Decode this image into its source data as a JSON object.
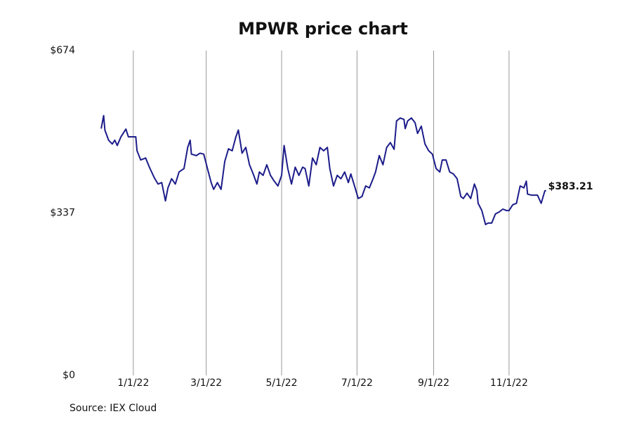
{
  "chart_data": {
    "type": "line",
    "title": "MPWR price chart",
    "source": "Source: IEX Cloud",
    "x": [
      "2021-12-06",
      "2021-12-08",
      "2021-12-09",
      "2021-12-12",
      "2021-12-15",
      "2021-12-17",
      "2021-12-19",
      "2021-12-22",
      "2021-12-26",
      "2021-12-28",
      "2022-01-03",
      "2022-01-04",
      "2022-01-07",
      "2022-01-11",
      "2022-01-14",
      "2022-01-18",
      "2022-01-21",
      "2022-01-24",
      "2022-01-27",
      "2022-01-29",
      "2022-02-01",
      "2022-02-04",
      "2022-02-07",
      "2022-02-11",
      "2022-02-14",
      "2022-02-16",
      "2022-02-17",
      "2022-02-21",
      "2022-02-24",
      "2022-02-27",
      "2022-03-02",
      "2022-03-05",
      "2022-03-07",
      "2022-03-10",
      "2022-03-13",
      "2022-03-16",
      "2022-03-19",
      "2022-03-22",
      "2022-03-25",
      "2022-03-27",
      "2022-03-30",
      "2022-04-02",
      "2022-04-05",
      "2022-04-08",
      "2022-04-11",
      "2022-04-13",
      "2022-04-16",
      "2022-04-19",
      "2022-04-22",
      "2022-04-25",
      "2022-04-28",
      "2022-05-01",
      "2022-05-03",
      "2022-05-06",
      "2022-05-09",
      "2022-05-12",
      "2022-05-15",
      "2022-05-18",
      "2022-05-20",
      "2022-05-23",
      "2022-05-26",
      "2022-05-29",
      "2022-06-01",
      "2022-06-04",
      "2022-06-07",
      "2022-06-09",
      "2022-06-12",
      "2022-06-15",
      "2022-06-18",
      "2022-06-21",
      "2022-06-24",
      "2022-06-26",
      "2022-06-29",
      "2022-07-02",
      "2022-07-05",
      "2022-07-08",
      "2022-07-11",
      "2022-07-14",
      "2022-07-16",
      "2022-07-19",
      "2022-07-22",
      "2022-07-25",
      "2022-07-28",
      "2022-07-31",
      "2022-08-02",
      "2022-08-05",
      "2022-08-08",
      "2022-08-09",
      "2022-08-11",
      "2022-08-14",
      "2022-08-17",
      "2022-08-19",
      "2022-08-22",
      "2022-08-25",
      "2022-08-28",
      "2022-08-31",
      "2022-09-03",
      "2022-09-06",
      "2022-09-08",
      "2022-09-11",
      "2022-09-14",
      "2022-09-17",
      "2022-09-20",
      "2022-09-23",
      "2022-09-25",
      "2022-09-28",
      "2022-10-01",
      "2022-10-04",
      "2022-10-06",
      "2022-10-07",
      "2022-10-10",
      "2022-10-13",
      "2022-10-15",
      "2022-10-18",
      "2022-10-21",
      "2022-10-24",
      "2022-10-27",
      "2022-10-30",
      "2022-11-01",
      "2022-11-04",
      "2022-11-07",
      "2022-11-10",
      "2022-11-13",
      "2022-11-15",
      "2022-11-16",
      "2022-11-19",
      "2022-11-21",
      "2022-11-24",
      "2022-11-27",
      "2022-11-30",
      "2022-12-01"
    ],
    "series": [
      {
        "name": "MPWR",
        "color": "#1c1c8a",
        "end_label": "$383.21",
        "values": [
          512,
          539,
          509,
          488,
          480,
          488,
          477,
          495,
          511,
          495,
          495,
          466,
          447,
          451,
          432,
          410,
          397,
          400,
          362,
          389,
          408,
          397,
          422,
          429,
          473,
          488,
          459,
          456,
          461,
          459,
          429,
          400,
          386,
          400,
          386,
          444,
          470,
          466,
          495,
          509,
          461,
          473,
          437,
          418,
          397,
          422,
          415,
          437,
          415,
          403,
          393,
          415,
          477,
          429,
          397,
          432,
          415,
          432,
          429,
          393,
          451,
          437,
          473,
          466,
          473,
          429,
          393,
          415,
          408,
          422,
          400,
          418,
          393,
          367,
          371,
          393,
          389,
          408,
          422,
          456,
          437,
          473,
          483,
          469,
          528,
          534,
          531,
          512,
          528,
          534,
          524,
          502,
          517,
          480,
          466,
          459,
          429,
          422,
          447,
          447,
          422,
          418,
          408,
          371,
          367,
          378,
          367,
          397,
          383,
          357,
          342,
          313,
          316,
          316,
          335,
          339,
          345,
          342,
          342,
          354,
          357,
          393,
          389,
          403,
          376,
          374,
          374,
          374,
          357,
          383,
          383.21
        ]
      }
    ],
    "xlim": [
      "2021-11-28",
      "2022-12-08"
    ],
    "xticks": [
      {
        "value": "2022-01-01",
        "label": "1/1/22"
      },
      {
        "value": "2022-03-01",
        "label": "3/1/22"
      },
      {
        "value": "2022-05-01",
        "label": "5/1/22"
      },
      {
        "value": "2022-07-01",
        "label": "7/1/22"
      },
      {
        "value": "2022-09-01",
        "label": "9/1/22"
      },
      {
        "value": "2022-11-01",
        "label": "11/1/22"
      }
    ],
    "ylim": [
      0,
      674
    ],
    "yticks": [
      {
        "value": 0,
        "label": "$0"
      },
      {
        "value": 337,
        "label": "$337"
      },
      {
        "value": 674,
        "label": "$674"
      }
    ],
    "x_grid": true
  }
}
